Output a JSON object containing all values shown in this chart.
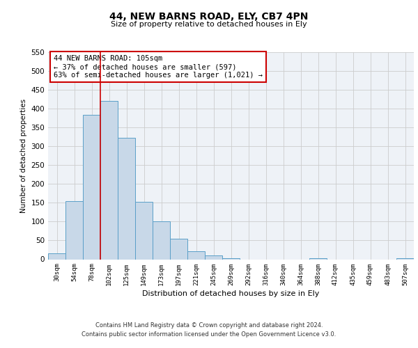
{
  "title": "44, NEW BARNS ROAD, ELY, CB7 4PN",
  "subtitle": "Size of property relative to detached houses in Ely",
  "xlabel": "Distribution of detached houses by size in Ely",
  "ylabel": "Number of detached properties",
  "bar_labels": [
    "30sqm",
    "54sqm",
    "78sqm",
    "102sqm",
    "125sqm",
    "149sqm",
    "173sqm",
    "197sqm",
    "221sqm",
    "245sqm",
    "269sqm",
    "292sqm",
    "316sqm",
    "340sqm",
    "364sqm",
    "388sqm",
    "412sqm",
    "435sqm",
    "459sqm",
    "483sqm",
    "507sqm"
  ],
  "bar_values": [
    15,
    155,
    383,
    420,
    323,
    153,
    101,
    54,
    22,
    11,
    2,
    0,
    0,
    0,
    0,
    2,
    0,
    0,
    0,
    0,
    2
  ],
  "bar_color": "#c8d8e8",
  "bar_edge_color": "#5a9fc8",
  "vline_color": "#cc0000",
  "annotation_text": "44 NEW BARNS ROAD: 105sqm\n← 37% of detached houses are smaller (597)\n63% of semi-detached houses are larger (1,021) →",
  "annotation_box_color": "#ffffff",
  "annotation_box_edge": "#cc0000",
  "ylim": [
    0,
    550
  ],
  "yticks": [
    0,
    50,
    100,
    150,
    200,
    250,
    300,
    350,
    400,
    450,
    500,
    550
  ],
  "grid_color": "#cccccc",
  "footer_line1": "Contains HM Land Registry data © Crown copyright and database right 2024.",
  "footer_line2": "Contains public sector information licensed under the Open Government Licence v3.0.",
  "bg_color": "#eef2f7"
}
